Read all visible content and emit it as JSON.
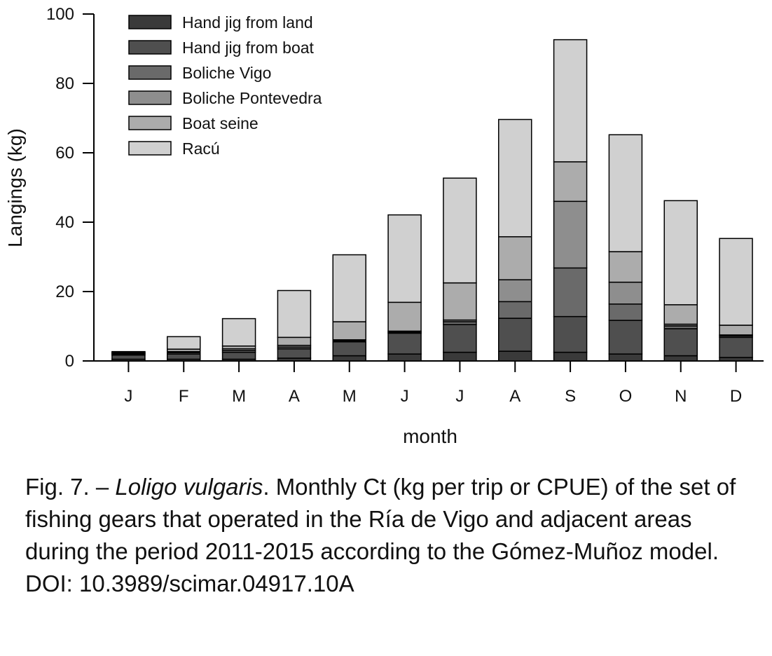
{
  "chart_data": {
    "type": "bar",
    "stacked": true,
    "categories": [
      "J",
      "F",
      "M",
      "A",
      "M",
      "J",
      "J",
      "A",
      "S",
      "O",
      "N",
      "D"
    ],
    "xlabel": "month",
    "ylabel": "Langings (kg)",
    "ylim": [
      0,
      100
    ],
    "yticks": [
      0,
      20,
      40,
      60,
      80,
      100
    ],
    "legend_position": "top-left",
    "grid": false,
    "series": [
      {
        "name": "Hand jig from land",
        "color": "#3a3a3a",
        "values": [
          0.5,
          0.5,
          0.5,
          0.8,
          1.5,
          2.0,
          2.5,
          2.8,
          2.5,
          2.0,
          1.5,
          1.0
        ]
      },
      {
        "name": "Hand jig from boat",
        "color": "#4f4f4f",
        "values": [
          1.2,
          1.5,
          2.0,
          2.7,
          4.0,
          6.0,
          8.0,
          9.5,
          10.3,
          9.7,
          7.8,
          5.8
        ]
      },
      {
        "name": "Boliche Vigo",
        "color": "#6a6a6a",
        "values": [
          0.3,
          0.4,
          0.5,
          0.5,
          0.3,
          0.3,
          0.8,
          4.8,
          14.0,
          4.7,
          0.8,
          0.4
        ]
      },
      {
        "name": "Boliche Pontevedra",
        "color": "#8e8e8e",
        "values": [
          0.2,
          0.3,
          0.5,
          0.5,
          0.3,
          0.3,
          0.5,
          6.3,
          19.2,
          6.3,
          0.5,
          0.3
        ]
      },
      {
        "name": "Boat seine",
        "color": "#acacac",
        "values": [
          0.3,
          0.7,
          0.8,
          2.3,
          5.2,
          8.3,
          10.7,
          12.4,
          11.4,
          8.8,
          5.6,
          2.8
        ]
      },
      {
        "name": "Racú",
        "color": "#d0d0d0",
        "values": [
          0.2,
          3.6,
          7.9,
          13.5,
          19.3,
          25.2,
          30.2,
          33.8,
          35.2,
          33.7,
          30.0,
          25.0
        ]
      }
    ]
  },
  "caption": {
    "prefix": "Fig. 7. – ",
    "species": "Loligo vulgaris",
    "text": ". Monthly Ct (kg per trip or CPUE) of the set of fishing gears that operated in the Ría de Vigo and adjacent areas during the period 2011-2015 according to the Gómez-Muñoz model. DOI: 10.3989/scimar.04917.10A"
  }
}
